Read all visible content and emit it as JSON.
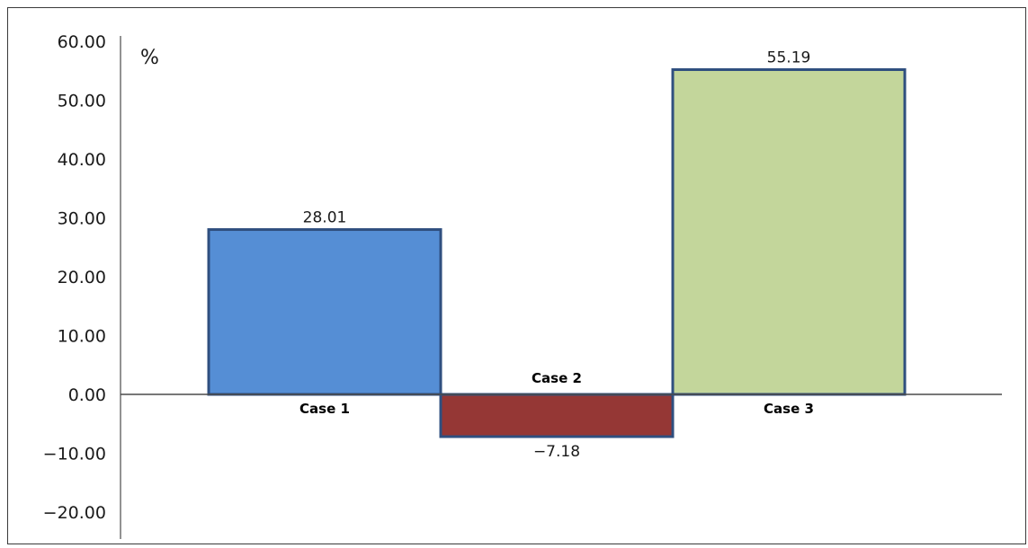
{
  "chart_data": {
    "type": "bar",
    "title": "",
    "xlabel": "",
    "ylabel": "%",
    "categories": [
      "Case 1",
      "Case 2",
      "Case 3"
    ],
    "values": [
      28.01,
      -7.18,
      55.19
    ],
    "data_labels": [
      "28.01",
      "−7.18",
      "55.19"
    ],
    "colors": [
      "#558ED5",
      "#953735",
      "#C3D69B"
    ],
    "edge_color": "#2F4F7F",
    "ylim": [
      -20,
      60
    ],
    "yticks": [
      60,
      50,
      40,
      30,
      20,
      10,
      0,
      -10,
      -20
    ],
    "ytick_labels": [
      "60.00",
      "50.00",
      "40.00",
      "30.00",
      "20.00",
      "10.00",
      "0.00",
      "−10.00",
      "−20.00"
    ],
    "grid": false,
    "legend": "none"
  }
}
